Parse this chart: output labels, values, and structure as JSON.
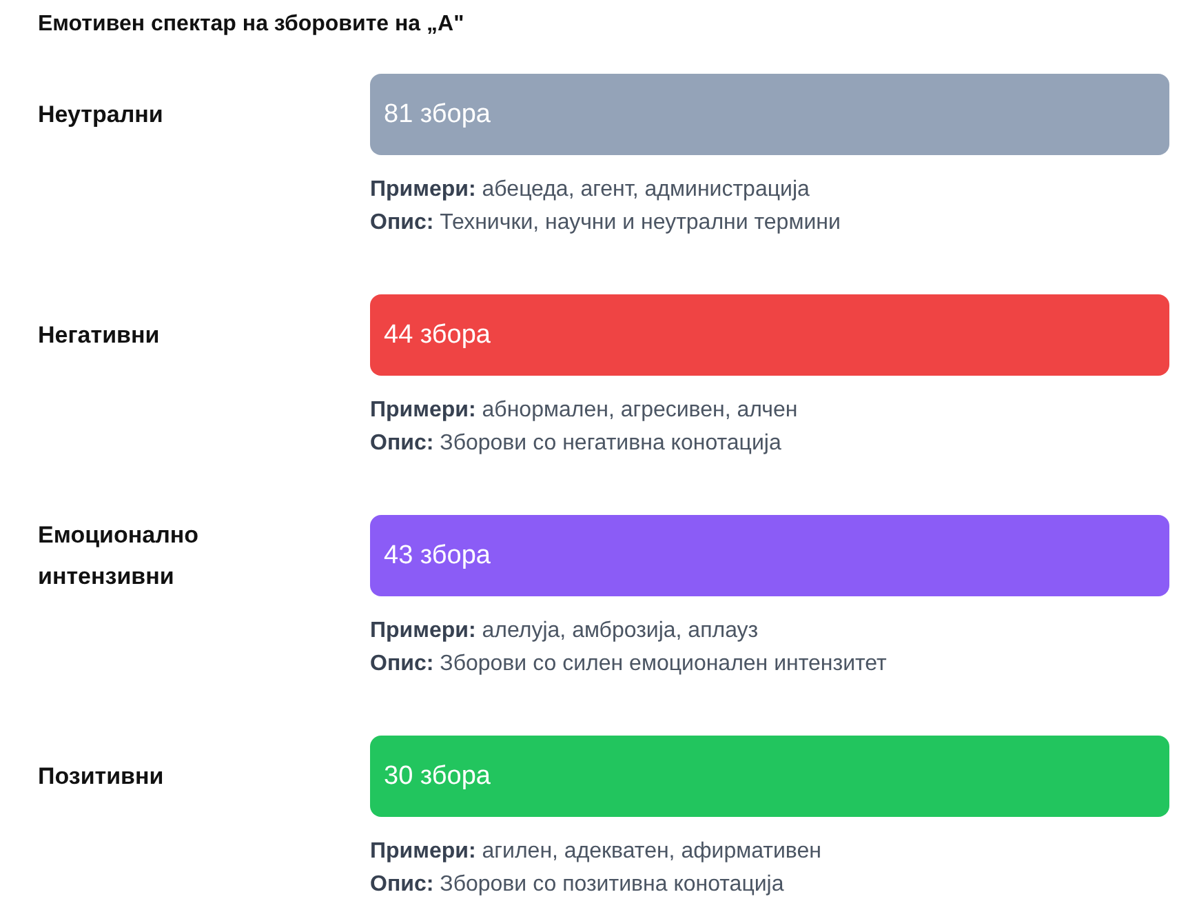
{
  "chart_data": {
    "type": "other",
    "title": "Емотивен спектар на зборовите на „А\"",
    "categories": [
      "Неутрални",
      "Негативни",
      "Емоционално интензивни",
      "Позитивни"
    ],
    "values": [
      81,
      44,
      43,
      30
    ],
    "value_labels": [
      "81 збора",
      "44 збора",
      "43 збора",
      "30 збора"
    ],
    "colors": [
      "#94a3b8",
      "#ef4444",
      "#8b5cf6",
      "#22c55e"
    ],
    "annotations": [
      "Примери: абецеда, агент, администрација",
      "Опис: Технички, научни и неутрални термини",
      "Примери: абнормален, агресивен, алчен",
      "Опис: Зборови со негативна конотација",
      "Примери: алелуја, амброзија, аплауз",
      "Опис: Зборови со силен емоционален интензитет",
      "Примери: агилен, адекватен, афирмативен",
      "Опис: Зборови со позитивна конотација"
    ]
  }
}
